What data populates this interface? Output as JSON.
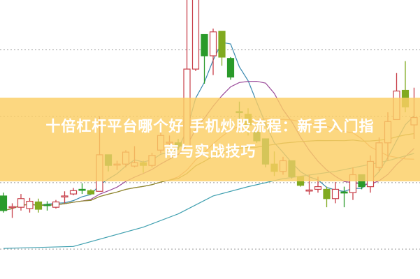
{
  "title": {
    "line1": "十倍杠杆平台哪个好 手机炒股流程：新手入门指",
    "line2": "南与实战技巧"
  },
  "colors": {
    "banner": "#fbce64",
    "up": "#c8404a",
    "down": "#2a9a2a",
    "down_light": "#80aa20",
    "ma5": "#3a8ab0",
    "ma10": "#9a4a9a",
    "ma20": "#e08a6a",
    "ma30": "#8a8a30",
    "ma_long": "#40a0b0",
    "grid": "#999999"
  },
  "chart_data": {
    "type": "candlestick",
    "grid": true,
    "gridlines": [
      10,
      20,
      30,
      40
    ],
    "ylim": [
      5.5,
      47.5
    ],
    "candles": [
      [
        18.0,
        18.5,
        15.5,
        15.8
      ],
      [
        16.3,
        16.9,
        14.7,
        16.4
      ],
      [
        16.3,
        18.3,
        15.8,
        17.6
      ],
      [
        16.1,
        17.7,
        15.5,
        17.2
      ],
      [
        17.1,
        17.6,
        15.5,
        16.0
      ],
      [
        16.7,
        17.2,
        15.8,
        16.6
      ],
      [
        16.3,
        17.4,
        16.1,
        17.1
      ],
      [
        17.9,
        18.7,
        16.9,
        18.0
      ],
      [
        18.3,
        19.2,
        18.1,
        18.8
      ],
      [
        19.0,
        19.9,
        18.3,
        18.9
      ],
      [
        18.8,
        19.0,
        18.2,
        18.3
      ],
      [
        18.7,
        30.0,
        18.7,
        24.2
      ],
      [
        24.2,
        24.2,
        21.7,
        22.6
      ],
      [
        22.7,
        23.3,
        21.9,
        22.8
      ],
      [
        22.8,
        24.9,
        22.3,
        24.6
      ],
      [
        22.5,
        25.5,
        22.3,
        23.0
      ],
      [
        23.0,
        23.3,
        21.5,
        22.6
      ],
      [
        22.6,
        24.5,
        22.3,
        24.1
      ],
      [
        24.9,
        28.2,
        24.4,
        27.1
      ],
      [
        26.0,
        27.1,
        25.5,
        26.1
      ],
      [
        26.0,
        26.6,
        24.9,
        25.5
      ],
      [
        25.5,
        48.0,
        25.5,
        37.1
      ],
      [
        37.1,
        48.0,
        36.8,
        47.8
      ],
      [
        42.3,
        42.3,
        34.9,
        39.1
      ],
      [
        39.1,
        43.2,
        36.2,
        42.7
      ],
      [
        42.8,
        42.8,
        37.6,
        38.9
      ],
      [
        38.7,
        38.9,
        35.5,
        35.9
      ],
      [
        30.7,
        32.2,
        29.2,
        30.6
      ],
      [
        30.3,
        31.2,
        27.1,
        28.7
      ],
      [
        27.6,
        28.2,
        26.0,
        26.3
      ],
      [
        26.6,
        26.6,
        22.3,
        22.8
      ],
      [
        22.8,
        24.7,
        21.0,
        21.7
      ],
      [
        21.7,
        23.9,
        21.2,
        23.3
      ],
      [
        23.3,
        23.3,
        20.6,
        20.9
      ],
      [
        20.9,
        20.9,
        19.4,
        19.6
      ],
      [
        18.8,
        21.2,
        18.2,
        18.9
      ],
      [
        19.0,
        20.9,
        18.5,
        19.4
      ],
      [
        19.0,
        19.4,
        16.3,
        17.6
      ],
      [
        17.6,
        20.1,
        16.9,
        19.0
      ],
      [
        18.6,
        19.4,
        16.3,
        18.5
      ],
      [
        18.5,
        22.3,
        17.4,
        21.2
      ],
      [
        21.2,
        21.2,
        19.0,
        19.4
      ],
      [
        19.4,
        24.1,
        18.5,
        23.2
      ],
      [
        22.3,
        26.8,
        21.7,
        26.0
      ],
      [
        26.0,
        30.6,
        23.3,
        29.2
      ],
      [
        29.5,
        36.5,
        29.5,
        33.8
      ],
      [
        33.9,
        38.3,
        30.6,
        31.4
      ],
      [
        28.7,
        34.3,
        26.6,
        29.8
      ]
    ],
    "candle_format": [
      "open",
      "high",
      "low",
      "close"
    ],
    "moving_averages": [
      5,
      10,
      20,
      30
    ],
    "long_line": [
      [
        0,
        10.1
      ],
      [
        8,
        10.4
      ],
      [
        16,
        13.3
      ],
      [
        20,
        15.3
      ],
      [
        24,
        18.0
      ],
      [
        28,
        19.4
      ],
      [
        32,
        20.6
      ],
      [
        38,
        21.7
      ],
      [
        44,
        23.3
      ],
      [
        47,
        24.4
      ]
    ]
  }
}
